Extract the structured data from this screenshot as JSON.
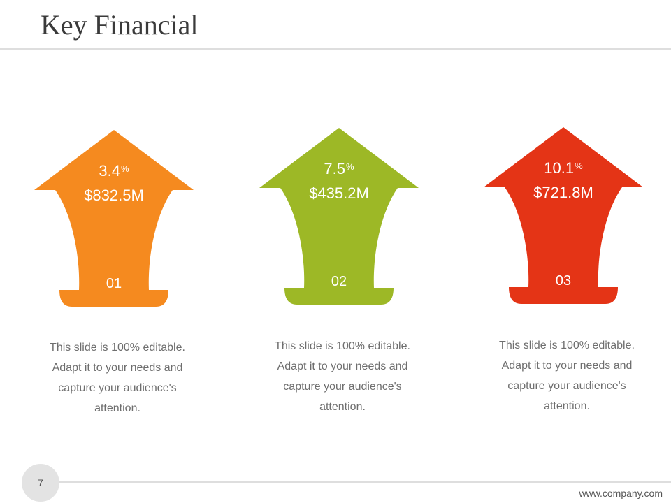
{
  "slide": {
    "title": "Key Financial",
    "page_number": "7",
    "footer_url": "www.company.com"
  },
  "arrows": [
    {
      "percent": "3.4",
      "percent_sign": "%",
      "amount": "$832.5M",
      "number": "01",
      "color": "#f58a1f",
      "description": "This slide is 100% editable. Adapt it to your needs and capture your audience's attention."
    },
    {
      "percent": "7.5",
      "percent_sign": "%",
      "amount": "$435.2M",
      "number": "02",
      "color": "#9db826",
      "description": "This slide is 100% editable. Adapt it to your needs and capture your audience's attention."
    },
    {
      "percent": "10.1",
      "percent_sign": "%",
      "amount": "$721.8M",
      "number": "03",
      "color": "#e43416",
      "description": "This slide is 100% editable. Adapt it to your needs and capture your audience's attention."
    }
  ]
}
